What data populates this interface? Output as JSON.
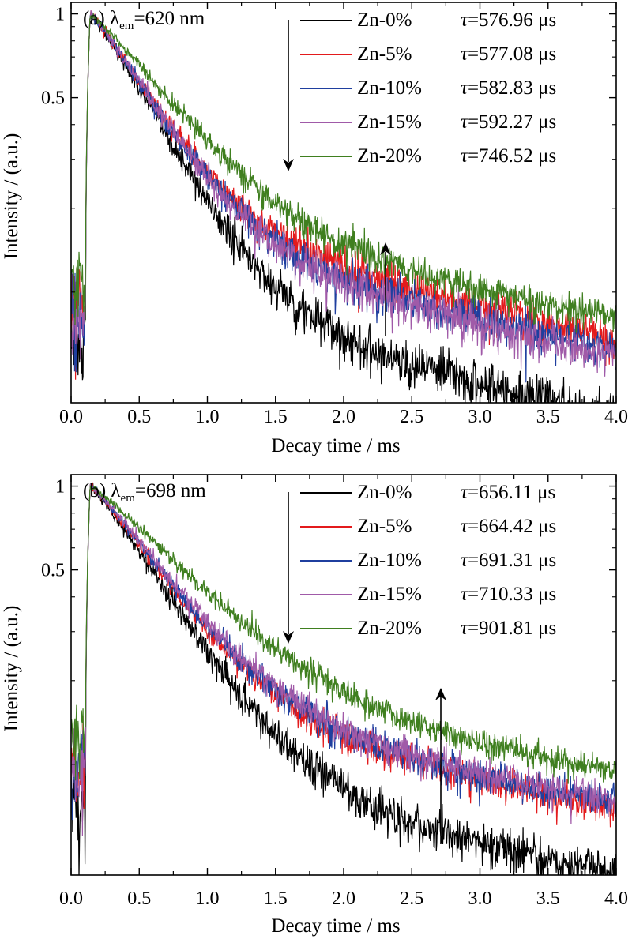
{
  "chart_data": [
    {
      "type": "line",
      "panel_label": "(a)",
      "condition": {
        "symbol": "λ",
        "subscript": "em",
        "value": "=620 nm"
      },
      "xlabel": "Decay time / ms",
      "ylabel": "Intensity / (a.u.)",
      "xlim": [
        0.0,
        4.0
      ],
      "xticks": [
        "0.0",
        "0.5",
        "1.0",
        "1.5",
        "2.0",
        "2.5",
        "3.0",
        "3.5",
        "4.0"
      ],
      "ylim": [
        0.04,
        1.1
      ],
      "yscale": "log",
      "yticks": [
        "0.5",
        "1"
      ],
      "grid": false,
      "legend_position": "top-right",
      "trend_arrows": [
        "down",
        "up"
      ],
      "series": [
        {
          "name": "Zn-0%",
          "tau_label": "=576.96 μs",
          "color": "#000000",
          "decay_us": 576.96,
          "tail": 0.1,
          "baseline": 0.068,
          "noise": 0.085
        },
        {
          "name": "Zn-5%",
          "tau_label": "=577.08 μs",
          "color": "#e31a1c",
          "decay_us": 577.08,
          "tail": 0.19,
          "baseline": 0.088,
          "noise": 0.075
        },
        {
          "name": "Zn-10%",
          "tau_label": "=582.83 μs",
          "color": "#1f3f9f",
          "decay_us": 582.83,
          "tail": 0.17,
          "baseline": 0.083,
          "noise": 0.075
        },
        {
          "name": "Zn-15%",
          "tau_label": "=592.27 μs",
          "color": "#a05aa8",
          "decay_us": 592.27,
          "tail": 0.16,
          "baseline": 0.08,
          "noise": 0.075
        },
        {
          "name": "Zn-20%",
          "tau_label": "=746.52 μs",
          "color": "#3f7f1f",
          "decay_us": 746.52,
          "tail": 0.18,
          "baseline": 0.105,
          "noise": 0.06
        }
      ]
    },
    {
      "type": "line",
      "panel_label": "(b)",
      "condition": {
        "symbol": "λ",
        "subscript": "em",
        "value": "=698 nm"
      },
      "xlabel": "Decay time / ms",
      "ylabel": "Intensity / (a.u.)",
      "xlim": [
        0.0,
        4.0
      ],
      "xticks": [
        "0.0",
        "0.5",
        "1.0",
        "1.5",
        "2.0",
        "2.5",
        "3.0",
        "3.5",
        "4.0"
      ],
      "ylim": [
        0.04,
        1.1
      ],
      "yscale": "log",
      "yticks": [
        "0.5",
        "1"
      ],
      "grid": false,
      "legend_position": "top-right",
      "trend_arrows": [
        "down",
        "up"
      ],
      "series": [
        {
          "name": "Zn-0%",
          "tau_label": "=656.11 μs",
          "color": "#000000",
          "decay_us": 656.11,
          "tail": 0.1,
          "baseline": 0.07,
          "noise": 0.075
        },
        {
          "name": "Zn-5%",
          "tau_label": "=664.42 μs",
          "color": "#e31a1c",
          "decay_us": 664.42,
          "tail": 0.17,
          "baseline": 0.098,
          "noise": 0.06
        },
        {
          "name": "Zn-10%",
          "tau_label": "=691.31 μs",
          "color": "#1f3f9f",
          "decay_us": 691.31,
          "tail": 0.17,
          "baseline": 0.096,
          "noise": 0.06
        },
        {
          "name": "Zn-15%",
          "tau_label": "=710.33 μs",
          "color": "#a05aa8",
          "decay_us": 710.33,
          "tail": 0.17,
          "baseline": 0.093,
          "noise": 0.06
        },
        {
          "name": "Zn-20%",
          "tau_label": "=901.81 μs",
          "color": "#3f7f1f",
          "decay_us": 901.81,
          "tail": 0.18,
          "baseline": 0.125,
          "noise": 0.05
        }
      ]
    }
  ]
}
